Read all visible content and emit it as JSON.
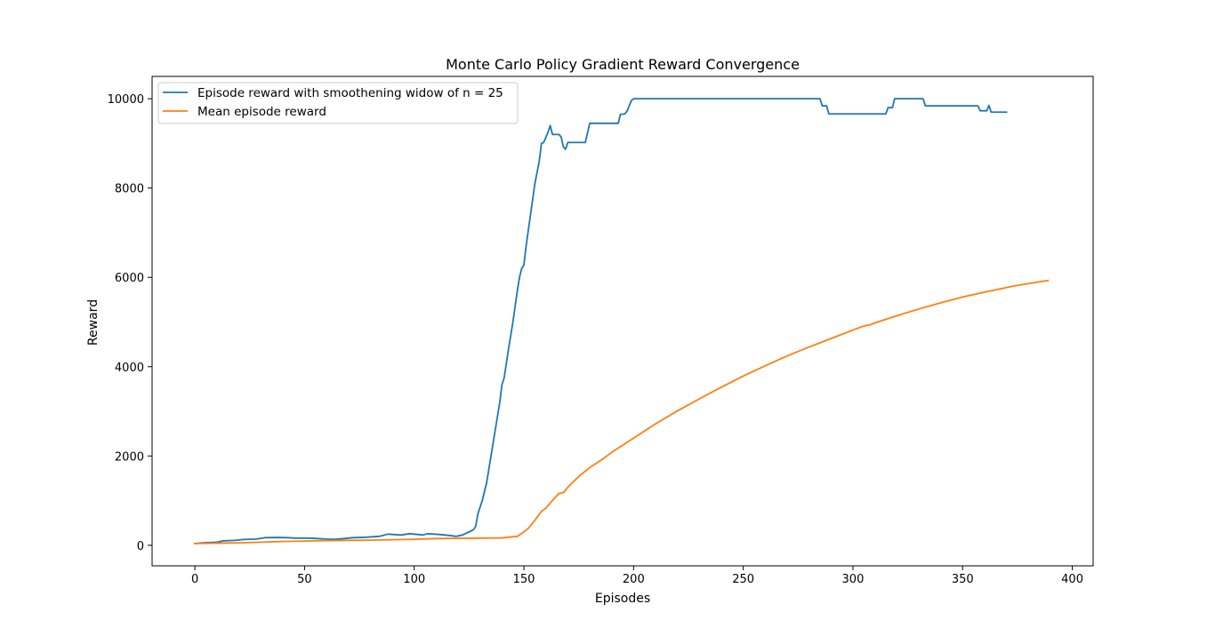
{
  "chart_data": {
    "type": "line",
    "title": "Monte Carlo Policy Gradient Reward Convergence",
    "xlabel": "Episodes",
    "ylabel": "Reward",
    "xlim": [
      -19.5,
      409.5
    ],
    "ylim": [
      -460,
      10500
    ],
    "xticks": [
      0,
      50,
      100,
      150,
      200,
      250,
      300,
      350,
      400
    ],
    "xtick_labels": [
      "0",
      "50",
      "100",
      "150",
      "200",
      "250",
      "300",
      "350",
      "400"
    ],
    "yticks": [
      0,
      2000,
      4000,
      6000,
      8000,
      10000
    ],
    "ytick_labels": [
      "0",
      "2000",
      "4000",
      "6000",
      "8000",
      "10000"
    ],
    "grid": false,
    "legend_position": "upper-left",
    "series": [
      {
        "name": "Episode reward with smoothening widow of n = 25",
        "color": "#1f77b4",
        "points": [
          [
            0,
            40
          ],
          [
            5,
            60
          ],
          [
            10,
            70
          ],
          [
            13,
            100
          ],
          [
            18,
            110
          ],
          [
            22,
            130
          ],
          [
            28,
            140
          ],
          [
            32,
            170
          ],
          [
            38,
            175
          ],
          [
            42,
            170
          ],
          [
            46,
            160
          ],
          [
            52,
            160
          ],
          [
            56,
            150
          ],
          [
            60,
            140
          ],
          [
            64,
            135
          ],
          [
            68,
            150
          ],
          [
            72,
            170
          ],
          [
            78,
            180
          ],
          [
            84,
            200
          ],
          [
            88,
            250
          ],
          [
            94,
            230
          ],
          [
            98,
            260
          ],
          [
            104,
            230
          ],
          [
            106,
            260
          ],
          [
            112,
            240
          ],
          [
            116,
            220
          ],
          [
            119,
            200
          ],
          [
            122,
            230
          ],
          [
            125,
            300
          ],
          [
            127,
            350
          ],
          [
            128,
            420
          ],
          [
            129,
            700
          ],
          [
            131,
            1000
          ],
          [
            133,
            1400
          ],
          [
            135,
            2000
          ],
          [
            137,
            2600
          ],
          [
            139,
            3200
          ],
          [
            140,
            3600
          ],
          [
            141,
            3750
          ],
          [
            143,
            4400
          ],
          [
            145,
            5000
          ],
          [
            147,
            5700
          ],
          [
            148,
            6000
          ],
          [
            149,
            6200
          ],
          [
            150,
            6280
          ],
          [
            151,
            6700
          ],
          [
            153,
            7400
          ],
          [
            155,
            8100
          ],
          [
            157,
            8600
          ],
          [
            158,
            9000
          ],
          [
            159,
            9020
          ],
          [
            161,
            9250
          ],
          [
            162,
            9400
          ],
          [
            163,
            9200
          ],
          [
            166,
            9200
          ],
          [
            167,
            9140
          ],
          [
            168,
            8920
          ],
          [
            169,
            8870
          ],
          [
            170,
            9020
          ],
          [
            178,
            9020
          ],
          [
            180,
            9450
          ],
          [
            193,
            9450
          ],
          [
            194,
            9650
          ],
          [
            196,
            9660
          ],
          [
            197,
            9720
          ],
          [
            199,
            9960
          ],
          [
            200,
            10000
          ],
          [
            285,
            10000
          ],
          [
            286,
            9840
          ],
          [
            288,
            9840
          ],
          [
            289,
            9660
          ],
          [
            315,
            9660
          ],
          [
            316,
            9800
          ],
          [
            318,
            9800
          ],
          [
            319,
            10000
          ],
          [
            332,
            10000
          ],
          [
            333,
            9840
          ],
          [
            357,
            9840
          ],
          [
            358,
            9730
          ],
          [
            361,
            9730
          ],
          [
            362,
            9850
          ],
          [
            363,
            9700
          ],
          [
            370,
            9700
          ]
        ]
      },
      {
        "name": "Mean episode reward",
        "color": "#ff7f0e",
        "points": [
          [
            0,
            40
          ],
          [
            20,
            55
          ],
          [
            40,
            85
          ],
          [
            60,
            105
          ],
          [
            80,
            115
          ],
          [
            100,
            135
          ],
          [
            110,
            150
          ],
          [
            130,
            160
          ],
          [
            140,
            165
          ],
          [
            147,
            200
          ],
          [
            150,
            300
          ],
          [
            152,
            380
          ],
          [
            155,
            560
          ],
          [
            158,
            760
          ],
          [
            160,
            830
          ],
          [
            164,
            1060
          ],
          [
            166,
            1160
          ],
          [
            168,
            1180
          ],
          [
            170,
            1300
          ],
          [
            175,
            1540
          ],
          [
            180,
            1740
          ],
          [
            185,
            1900
          ],
          [
            190,
            2080
          ],
          [
            200,
            2400
          ],
          [
            210,
            2720
          ],
          [
            220,
            3010
          ],
          [
            230,
            3280
          ],
          [
            240,
            3540
          ],
          [
            250,
            3790
          ],
          [
            260,
            4020
          ],
          [
            270,
            4240
          ],
          [
            280,
            4440
          ],
          [
            290,
            4630
          ],
          [
            300,
            4820
          ],
          [
            305,
            4910
          ],
          [
            308,
            4940
          ],
          [
            310,
            4980
          ],
          [
            320,
            5140
          ],
          [
            330,
            5290
          ],
          [
            340,
            5430
          ],
          [
            350,
            5560
          ],
          [
            360,
            5670
          ],
          [
            370,
            5770
          ],
          [
            375,
            5820
          ],
          [
            380,
            5860
          ],
          [
            385,
            5900
          ],
          [
            389,
            5930
          ]
        ]
      }
    ]
  }
}
